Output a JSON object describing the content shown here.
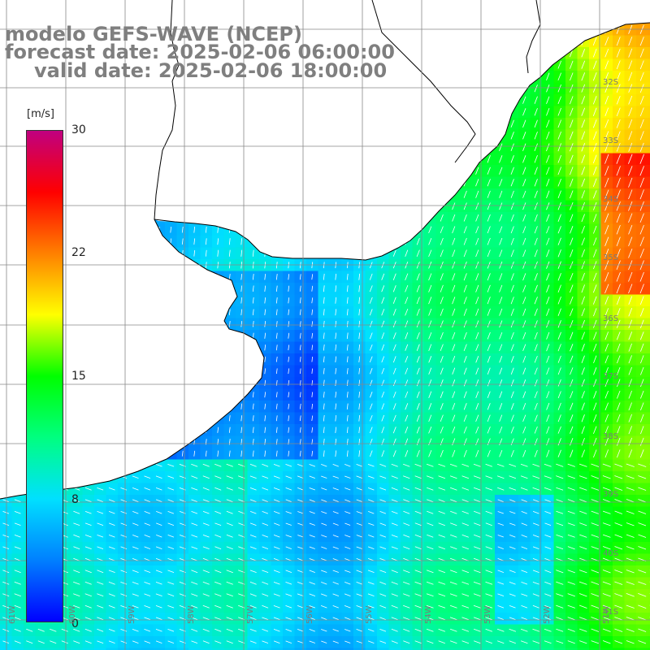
{
  "title": {
    "line1": "modelo GEFS-WAVE (NCEP)",
    "line2": "forecast date: 2025-02-06 06:00:00",
    "line3": "valid date: 2025-02-06 18:00:00"
  },
  "colorbar": {
    "unit": "[m/s]",
    "ticks": [
      "30",
      "22",
      "15",
      "8",
      "0"
    ],
    "tick_values": [
      30,
      22,
      15,
      8,
      0
    ],
    "range": [
      0,
      30
    ]
  },
  "grid": {
    "lat_labels": [
      "32S",
      "33S",
      "34S",
      "35S",
      "36S",
      "37S",
      "38S",
      "39S",
      "40S",
      "41S"
    ],
    "lon_labels": [
      "61W",
      "60W",
      "59W",
      "58W",
      "57W",
      "56W",
      "55W",
      "54W",
      "53W",
      "52W",
      "51W"
    ]
  },
  "colors": {
    "title_text": "#7f7f7f",
    "land": "#ffffff",
    "coastline": "#000000",
    "graticule": "#888888",
    "vector_arrows": "#ffffff",
    "scale": [
      "#0000ff",
      "#0080ff",
      "#00e0ff",
      "#00ff80",
      "#00ff00",
      "#ffff00",
      "#ff8000",
      "#ff0000",
      "#c00080"
    ]
  }
}
